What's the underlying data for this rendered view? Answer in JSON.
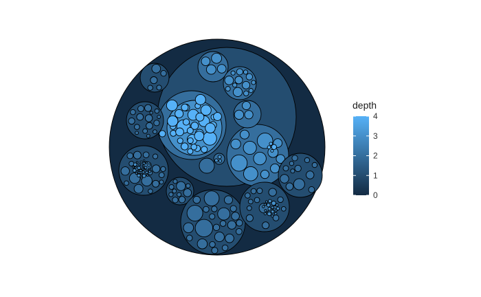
{
  "chart_data": {
    "type": "circle-packing",
    "legend": {
      "title": "depth",
      "ticks": [
        "0",
        "1",
        "2",
        "3",
        "4"
      ],
      "domain": [
        0,
        4
      ],
      "colors": {
        "low": "#132B43",
        "high": "#56B1F7"
      }
    },
    "depths": [
      0,
      1,
      2,
      3,
      4
    ]
  }
}
